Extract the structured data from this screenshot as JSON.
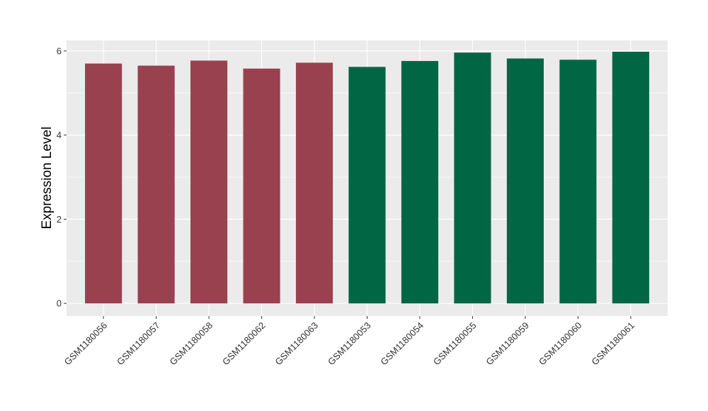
{
  "chart_data": {
    "type": "bar",
    "title": "",
    "xlabel": "",
    "ylabel": "Expression Level",
    "ylim": [
      -0.3,
      6.25
    ],
    "yticks": [
      0,
      2,
      4,
      6
    ],
    "grid": true,
    "categories": [
      "GSM1180056",
      "GSM1180057",
      "GSM1180058",
      "GSM1180062",
      "GSM1180063",
      "GSM1180053",
      "GSM1180054",
      "GSM1180055",
      "GSM1180059",
      "GSM1180060",
      "GSM1180061"
    ],
    "values": [
      5.7,
      5.65,
      5.77,
      5.58,
      5.72,
      5.62,
      5.76,
      5.96,
      5.82,
      5.79,
      5.98
    ],
    "colors": [
      "#9a4150",
      "#9a4150",
      "#9a4150",
      "#9a4150",
      "#9a4150",
      "#006644",
      "#006644",
      "#006644",
      "#006644",
      "#006644",
      "#006644"
    ],
    "panel_background": "#ebebeb",
    "gridline_color": "#ffffff"
  }
}
